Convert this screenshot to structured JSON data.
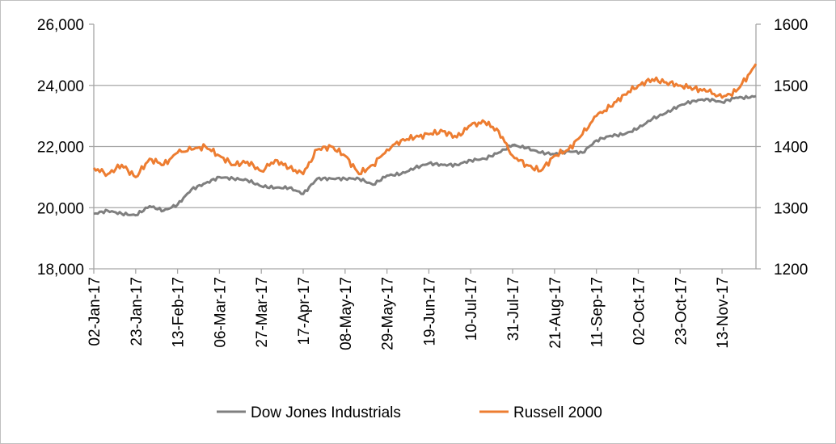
{
  "chart_data": {
    "type": "line",
    "title": "",
    "xlabel": "",
    "ylabel": "",
    "y_left": {
      "range": [
        18000,
        26000
      ],
      "ticks": [
        "18,000",
        "20,000",
        "22,000",
        "24,000",
        "26,000"
      ],
      "tick_values": [
        18000,
        20000,
        22000,
        24000,
        26000
      ]
    },
    "y_right": {
      "range": [
        1200,
        1600
      ],
      "ticks": [
        "1200",
        "1300",
        "1400",
        "1500",
        "1600"
      ],
      "tick_values": [
        1200,
        1300,
        1400,
        1500,
        1600
      ]
    },
    "x_ticks": [
      "02-Jan-17",
      "23-Jan-17",
      "13-Feb-17",
      "06-Mar-17",
      "27-Mar-17",
      "17-Apr-17",
      "08-May-17",
      "29-May-17",
      "19-Jun-17",
      "10-Jul-17",
      "31-Jul-17",
      "21-Aug-17",
      "11-Sep-17",
      "02-Oct-17",
      "23-Oct-17",
      "13-Nov-17"
    ],
    "x_range_days": [
      0,
      332
    ],
    "legend_position": "bottom",
    "series": [
      {
        "name": "Dow Jones Industrials",
        "axis": "left",
        "color": "#7f7f7f",
        "days": [
          0,
          7,
          14,
          21,
          28,
          35,
          42,
          49,
          56,
          63,
          70,
          77,
          84,
          91,
          98,
          105,
          112,
          119,
          126,
          133,
          140,
          147,
          154,
          161,
          168,
          175,
          182,
          189,
          196,
          203,
          210,
          217,
          224,
          231,
          238,
          245,
          252,
          259,
          266,
          273,
          280,
          287,
          294,
          301,
          308,
          315,
          322,
          329,
          332
        ],
        "values": [
          19800,
          19900,
          19800,
          19750,
          20050,
          19900,
          20100,
          20600,
          20800,
          21000,
          20950,
          20900,
          20700,
          20650,
          20650,
          20450,
          20950,
          20950,
          20950,
          20950,
          20750,
          21050,
          21100,
          21300,
          21450,
          21400,
          21400,
          21550,
          21600,
          21800,
          22050,
          21950,
          21800,
          21750,
          21850,
          21800,
          22200,
          22350,
          22400,
          22600,
          22900,
          23100,
          23350,
          23500,
          23550,
          23450,
          23600,
          23600,
          23650
        ]
      },
      {
        "name": "Russell 2000",
        "axis": "right",
        "color": "#ed7d31",
        "days": [
          0,
          7,
          14,
          21,
          28,
          35,
          42,
          49,
          56,
          63,
          70,
          77,
          84,
          91,
          98,
          105,
          112,
          119,
          126,
          133,
          140,
          147,
          154,
          161,
          168,
          175,
          182,
          189,
          196,
          203,
          210,
          217,
          224,
          231,
          238,
          245,
          252,
          259,
          266,
          273,
          280,
          287,
          294,
          301,
          308,
          315,
          322,
          329,
          332
        ],
        "values": [
          1365,
          1355,
          1370,
          1350,
          1380,
          1370,
          1390,
          1395,
          1400,
          1385,
          1370,
          1375,
          1360,
          1378,
          1365,
          1355,
          1395,
          1400,
          1385,
          1355,
          1370,
          1395,
          1410,
          1415,
          1420,
          1425,
          1415,
          1435,
          1440,
          1425,
          1385,
          1370,
          1360,
          1385,
          1395,
          1420,
          1450,
          1465,
          1485,
          1500,
          1510,
          1505,
          1500,
          1495,
          1490,
          1480,
          1490,
          1520,
          1535
        ]
      }
    ]
  }
}
